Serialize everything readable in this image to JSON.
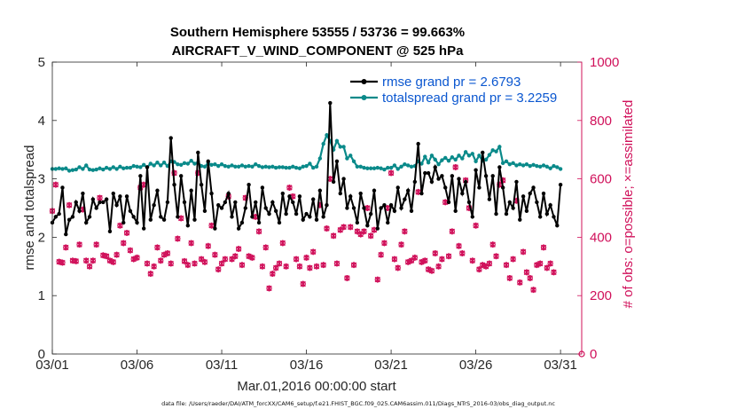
{
  "chart_data": {
    "type": "line",
    "title": [
      "Southern Hemisphere 53555 / 53736 = 99.663%",
      "AIRCRAFT_V_WIND_COMPONENT @ 525 hPa"
    ],
    "xlabel": "Mar.01,2016 00:00:00 start",
    "ylabel": "rmse and totalspread",
    "y2label": "# of obs: o=possible; ×=assimilated",
    "footnote": "data file: /Users/raeder/DAI/ATM_forcXX/CAM6_setup/f.e21.FHIST_BGC.f09_025.CAM6assim.011/Diags_NTrS_2016-03/obs_diag_output.nc",
    "xlim": [
      0,
      31.25
    ],
    "ylim": [
      0,
      5
    ],
    "y2lim": [
      0,
      1000
    ],
    "xticks": [
      0,
      5,
      10,
      15,
      20,
      25,
      30
    ],
    "xtick_labels": [
      "03/01",
      "03/06",
      "03/11",
      "03/16",
      "03/21",
      "03/26",
      "03/31"
    ],
    "yticks": [
      0,
      1,
      2,
      3,
      4,
      5
    ],
    "ytick_labels": [
      "0",
      "1",
      "2",
      "3",
      "4",
      "5"
    ],
    "y2ticks": [
      0,
      200,
      400,
      600,
      800,
      1000
    ],
    "y2tick_labels": [
      "0",
      "200",
      "400",
      "600",
      "800",
      "1000"
    ],
    "colors": {
      "rmse": "#000000",
      "spread": "#0a8a8a",
      "obs": "#d0105a",
      "legend_text": "#0b57d0"
    },
    "legend_position": "top-right",
    "series": [
      {
        "name": "rmse grand pr = 2.6793",
        "values": [
          2.25,
          2.35,
          2.4,
          2.85,
          2.05,
          2.3,
          2.35,
          2.6,
          2.45,
          2.75,
          2.25,
          2.35,
          2.65,
          2.5,
          2.6,
          2.6,
          2.65,
          2.1,
          2.75,
          2.55,
          2.7,
          2.25,
          2.7,
          2.45,
          2.35,
          2.25,
          3.05,
          2.15,
          3.2,
          2.3,
          2.55,
          2.8,
          2.35,
          2.3,
          2.6,
          3.7,
          2.9,
          2.35,
          3.05,
          2.6,
          2.2,
          2.8,
          2.3,
          3.45,
          2.9,
          2.45,
          3.3,
          2.75,
          2.15,
          2.55,
          2.5,
          2.6,
          2.75,
          2.35,
          2.6,
          2.15,
          2.25,
          2.5,
          2.9,
          2.35,
          2.6,
          2.25,
          2.85,
          2.5,
          2.4,
          2.6,
          2.45,
          2.25,
          2.75,
          2.4,
          2.7,
          2.6,
          2.4,
          2.7,
          2.3,
          2.4,
          2.35,
          2.65,
          2.3,
          2.8,
          2.35,
          2.55,
          4.3,
          2.95,
          3.3,
          2.75,
          3.0,
          2.5,
          2.7,
          2.5,
          2.25,
          2.75,
          2.5,
          2.2,
          2.4,
          2.8,
          2.15,
          2.5,
          2.55,
          2.25,
          2.55,
          2.45,
          2.85,
          2.5,
          2.65,
          2.8,
          2.45,
          2.95,
          3.6,
          2.75,
          3.1,
          3.1,
          2.95,
          3.2,
          3.0,
          3.05,
          2.85,
          2.6,
          3.05,
          2.45,
          3.0,
          2.75,
          2.95,
          2.6,
          2.35,
          3.15,
          2.85,
          3.45,
          3.05,
          2.65,
          3.05,
          2.4,
          3.2,
          2.85,
          2.4,
          2.6,
          2.5,
          2.95,
          2.3,
          2.7,
          2.45,
          2.75,
          2.85,
          2.6,
          2.35,
          2.75,
          2.4,
          2.55,
          2.35,
          2.2,
          2.9
        ]
      },
      {
        "name": "totalspread grand pr = 3.2259",
        "values": [
          3.17,
          3.17,
          3.18,
          3.17,
          3.18,
          3.14,
          3.15,
          3.16,
          3.2,
          3.17,
          3.23,
          3.16,
          3.15,
          3.16,
          3.18,
          3.16,
          3.19,
          3.17,
          3.2,
          3.17,
          3.21,
          3.18,
          3.19,
          3.19,
          3.22,
          3.21,
          3.2,
          3.24,
          3.2,
          3.26,
          3.23,
          3.28,
          3.23,
          3.28,
          3.22,
          3.3,
          3.29,
          3.25,
          3.24,
          3.27,
          3.26,
          3.31,
          3.26,
          3.28,
          3.22,
          3.21,
          3.27,
          3.24,
          3.25,
          3.22,
          3.25,
          3.22,
          3.21,
          3.23,
          3.21,
          3.21,
          3.23,
          3.21,
          3.22,
          3.21,
          3.25,
          3.22,
          3.2,
          3.21,
          3.2,
          3.21,
          3.19,
          3.2,
          3.2,
          3.19,
          3.19,
          3.21,
          3.19,
          3.18,
          3.21,
          3.22,
          3.26,
          3.19,
          3.21,
          3.35,
          3.6,
          3.75,
          3.65,
          3.5,
          3.65,
          3.55,
          3.55,
          3.35,
          3.4,
          3.3,
          3.21,
          3.21,
          3.19,
          3.18,
          3.18,
          3.18,
          3.19,
          3.18,
          3.16,
          3.19,
          3.19,
          3.23,
          3.17,
          3.21,
          3.25,
          3.23,
          3.21,
          3.22,
          3.3,
          3.26,
          3.38,
          3.28,
          3.4,
          3.33,
          3.25,
          3.32,
          3.36,
          3.31,
          3.37,
          3.33,
          3.4,
          3.35,
          3.46,
          3.4,
          3.43,
          3.3,
          3.4,
          3.31,
          3.33,
          3.41,
          3.49,
          3.47,
          3.55,
          3.27,
          3.3,
          3.25,
          3.27,
          3.23,
          3.25,
          3.23,
          3.25,
          3.22,
          3.24,
          3.22,
          3.21,
          3.23,
          3.21,
          3.18,
          3.22,
          3.2,
          3.17
        ]
      },
      {
        "name": "possible",
        "marker": "o",
        "values": [
          490,
          580,
          316,
          313,
          365,
          510,
          320,
          318,
          375,
          495,
          320,
          300,
          320,
          375,
          535,
          338,
          335,
          320,
          315,
          340,
          440,
          380,
          415,
          355,
          325,
          330,
          570,
          580,
          310,
          275,
          300,
          365,
          320,
          340,
          345,
          310,
          620,
          395,
          465,
          318,
          305,
          380,
          310,
          620,
          325,
          315,
          370,
          440,
          340,
          290,
          310,
          325,
          540,
          325,
          335,
          360,
          305,
          535,
          335,
          330,
          470,
          420,
          300,
          365,
          225,
          275,
          295,
          310,
          380,
          300,
          570,
          540,
          325,
          300,
          240,
          330,
          295,
          350,
          300,
          510,
          305,
          430,
          600,
          405,
          310,
          425,
          435,
          260,
          435,
          305,
          420,
          410,
          420,
          500,
          405,
          425,
          255,
          340,
          380,
          500,
          620,
          325,
          295,
          375,
          420,
          315,
          320,
          330,
          555,
          315,
          320,
          290,
          285,
          345,
          300,
          325,
          520,
          335,
          420,
          640,
          370,
          345,
          595,
          500,
          320,
          440,
          290,
          305,
          300,
          310,
          375,
          335,
          580,
          595,
          305,
          260,
          325,
          525,
          245,
          350,
          280,
          260,
          220,
          305,
          310,
          365,
          295,
          310,
          280
        ]
      },
      {
        "name": "assimilated",
        "marker": "x",
        "values": [
          490,
          580,
          316,
          313,
          365,
          510,
          320,
          318,
          375,
          495,
          320,
          300,
          320,
          375,
          535,
          338,
          335,
          320,
          315,
          340,
          440,
          380,
          415,
          355,
          325,
          330,
          570,
          580,
          310,
          275,
          300,
          365,
          320,
          340,
          345,
          310,
          620,
          395,
          465,
          318,
          305,
          380,
          310,
          620,
          325,
          315,
          370,
          440,
          340,
          290,
          310,
          325,
          540,
          325,
          335,
          360,
          305,
          535,
          335,
          330,
          470,
          420,
          300,
          365,
          225,
          275,
          295,
          310,
          380,
          300,
          570,
          540,
          325,
          300,
          240,
          330,
          295,
          350,
          300,
          510,
          305,
          430,
          600,
          405,
          310,
          425,
          435,
          260,
          435,
          305,
          420,
          410,
          420,
          500,
          405,
          425,
          255,
          340,
          380,
          500,
          620,
          325,
          295,
          375,
          420,
          315,
          320,
          330,
          555,
          315,
          320,
          290,
          285,
          345,
          300,
          325,
          520,
          335,
          420,
          640,
          370,
          345,
          595,
          500,
          320,
          440,
          290,
          305,
          300,
          310,
          375,
          335,
          580,
          595,
          305,
          260,
          325,
          525,
          245,
          350,
          280,
          260,
          220,
          305,
          310,
          365,
          295,
          310,
          280
        ]
      }
    ]
  }
}
